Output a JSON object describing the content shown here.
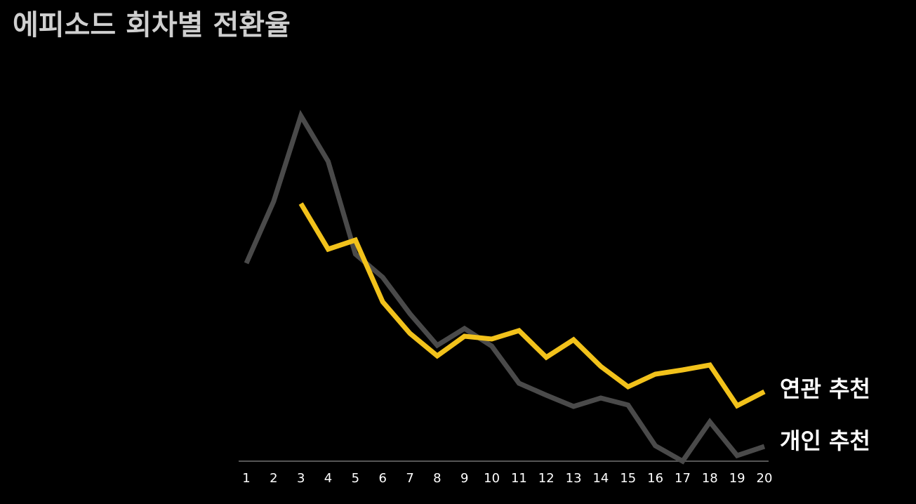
{
  "chart_data": {
    "type": "line",
    "title": "에피소드 회차별 전환율",
    "categories": [
      "1",
      "2",
      "3",
      "4",
      "5",
      "6",
      "7",
      "8",
      "9",
      "10",
      "11",
      "12",
      "13",
      "14",
      "15",
      "16",
      "17",
      "18",
      "19",
      "20"
    ],
    "series": [
      {
        "name": "개인 추천",
        "color": "#4a4a4a",
        "values": [
          282,
          370,
          492,
          427,
          295,
          262,
          210,
          165,
          189,
          164,
          111,
          94,
          78,
          90,
          80,
          22,
          0,
          56,
          8,
          21
        ]
      },
      {
        "name": "연관 추천",
        "color": "#f2c21b",
        "values": [
          null,
          null,
          367,
          302,
          315,
          227,
          182,
          150,
          178,
          174,
          186,
          148,
          173,
          135,
          106,
          124,
          130,
          137,
          79,
          99
        ]
      }
    ],
    "ylim": [
      0,
      500
    ]
  }
}
